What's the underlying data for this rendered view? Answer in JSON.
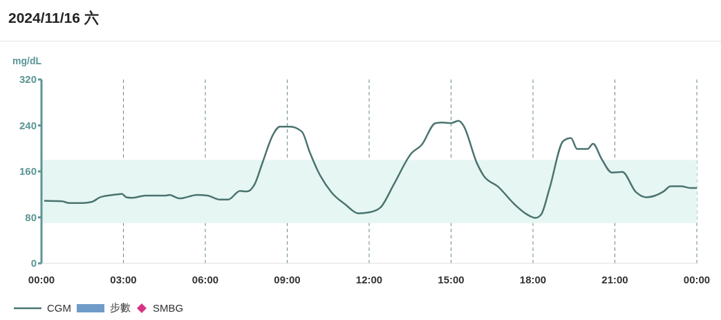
{
  "chart_data": {
    "type": "line",
    "title": "2024/11/16 六",
    "ylabel": "mg/dL",
    "xlim": [
      0,
      24
    ],
    "xticks": [
      {
        "value": 0,
        "label": "00:00"
      },
      {
        "value": 3,
        "label": "03:00"
      },
      {
        "value": 6,
        "label": "06:00"
      },
      {
        "value": 9,
        "label": "09:00"
      },
      {
        "value": 12,
        "label": "12:00"
      },
      {
        "value": 15,
        "label": "15:00"
      },
      {
        "value": 18,
        "label": "18:00"
      },
      {
        "value": 21,
        "label": "21:00"
      },
      {
        "value": 24,
        "label": "00:00"
      }
    ],
    "ylim": [
      0,
      320
    ],
    "yticks": [
      0,
      80,
      160,
      240,
      320
    ],
    "grid": "x",
    "legend": "bottom left",
    "marker": "none",
    "line_style": "solid",
    "bands": [
      {
        "axis": "y",
        "from": 70,
        "to": 180,
        "color": "#e6f6f3"
      }
    ],
    "series": [
      {
        "name": "CGM",
        "color": "#4a736f",
        "x": [
          0.1,
          0.76,
          1.01,
          1.52,
          1.85,
          2.15,
          2.78,
          2.94,
          3.11,
          3.34,
          3.8,
          4.56,
          4.68,
          5.06,
          5.7,
          6.08,
          6.53,
          6.84,
          7.27,
          7.52,
          7.8,
          8.1,
          8.48,
          8.73,
          9.11,
          9.54,
          9.82,
          10.13,
          10.63,
          11.14,
          11.6,
          12.03,
          12.41,
          12.91,
          13.54,
          13.92,
          14.43,
          14.68,
          14.99,
          15.27,
          15.44,
          15.95,
          16.2,
          16.71,
          17.34,
          17.72,
          18.1,
          18.3,
          18.61,
          19.11,
          19.39,
          19.62,
          20,
          20.2,
          20.51,
          20.89,
          21.27,
          21.77,
          22.15,
          22.78,
          23.04,
          23.42,
          23.8,
          24
        ],
        "values": [
          109,
          108,
          105,
          105,
          107,
          115,
          120,
          121,
          115,
          114,
          118,
          118,
          119,
          113,
          119,
          118,
          111,
          111,
          126,
          125,
          137,
          176,
          224,
          238,
          238,
          229,
          194,
          160,
          123,
          102,
          87,
          89,
          97,
          138,
          191,
          206,
          244,
          245,
          244,
          248,
          241,
          174,
          152,
          134,
          102,
          87,
          79,
          85,
          131,
          213,
          218,
          199,
          199,
          208,
          182,
          158,
          159,
          124,
          115,
          125,
          134,
          134,
          131,
          131
        ]
      },
      {
        "name": "步數",
        "type": "bar",
        "color": "#6f9bc8"
      },
      {
        "name": "SMBG",
        "type": "scatter",
        "color": "#d63384",
        "marker": "diamond"
      }
    ]
  }
}
